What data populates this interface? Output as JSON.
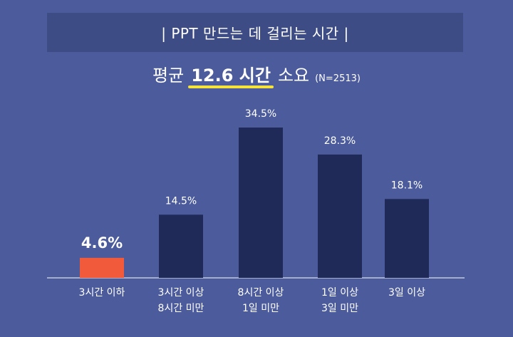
{
  "title": "| PPT 만드는 데 걸리는 시간 |",
  "subtitle": {
    "prefix": "평균",
    "highlight": "12.6 시간",
    "suffix": "소요",
    "sample": "(N=2513)"
  },
  "colors": {
    "background": "#4b5b9b",
    "title_bar": "#3e4c85",
    "bar": "#1f2a58",
    "highlight_bar": "#f15a3b",
    "underline": "#f5e33a"
  },
  "chart_data": {
    "type": "bar",
    "title": "",
    "xlabel": "",
    "ylabel": "",
    "ylim": [
      0,
      40
    ],
    "grid": false,
    "categories": [
      [
        "3시간 이하"
      ],
      [
        "3시간 이상",
        "8시간 미만"
      ],
      [
        "8시간 이상",
        "1일 미만"
      ],
      [
        "1일 이상",
        "3일 미만"
      ],
      [
        "3일 이상"
      ]
    ],
    "values": [
      4.6,
      14.5,
      34.5,
      28.3,
      18.1
    ],
    "value_labels": [
      "4.6%",
      "14.5%",
      "34.5%",
      "28.3%",
      "18.1%"
    ],
    "highlight_index": 0
  }
}
